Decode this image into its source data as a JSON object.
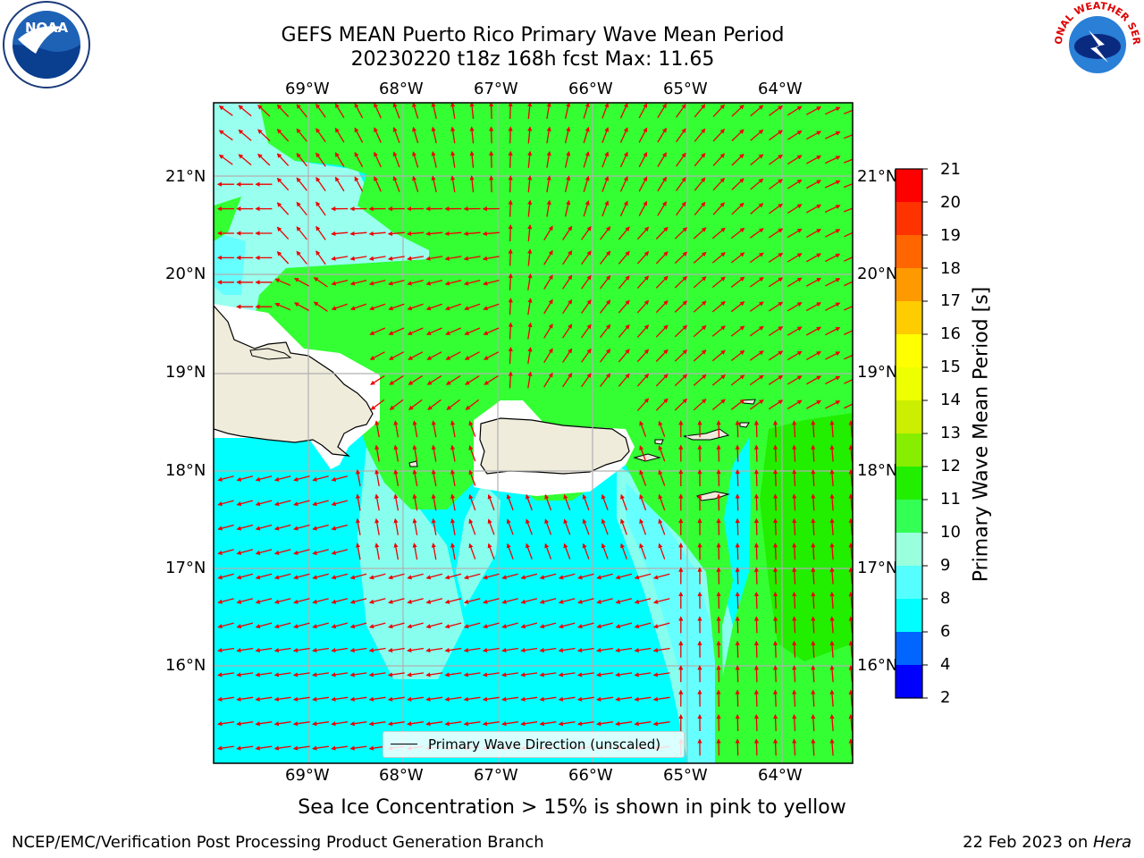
{
  "title": {
    "line1": "GEFS MEAN Puerto Rico Primary Wave Mean Period",
    "line2": "20230220 t18z 168h fcst   Max: 11.65"
  },
  "lon_labels": [
    "69°W",
    "68°W",
    "67°W",
    "66°W",
    "65°W",
    "64°W"
  ],
  "lat_labels": [
    "21°N",
    "20°N",
    "19°N",
    "18°N",
    "17°N",
    "16°N"
  ],
  "legend": {
    "label": "Primary Wave Direction (unscaled)"
  },
  "colorbar": {
    "title": "Primary Wave Mean Period [s]",
    "ticks": [
      "21",
      "20",
      "19",
      "18",
      "17",
      "16",
      "15",
      "14",
      "13",
      "12",
      "11",
      "10",
      "9",
      "8",
      "6",
      "4",
      "2"
    ],
    "levels": [
      2,
      4,
      6,
      8,
      9,
      10,
      11,
      12,
      13,
      14,
      15,
      16,
      17,
      18,
      19,
      20,
      21
    ],
    "colors": [
      "#0000ff",
      "#0066ff",
      "#00ffff",
      "#55ffff",
      "#99ffdd",
      "#33ff55",
      "#22ee00",
      "#88ee00",
      "#ccee00",
      "#eeff00",
      "#ffff00",
      "#ffcc00",
      "#ff9900",
      "#ff6600",
      "#ff3300",
      "#ff0000"
    ]
  },
  "colors": {
    "land": "#efecdc",
    "arrow": "#ee0000",
    "grid": "#b0b0b0",
    "ocean_short_period": "#00ffff",
    "ocean_mid_period": "#99ffee",
    "ocean_long_period": "#33ff33"
  },
  "caption": "Sea Ice Concentration > 15% is shown in pink to yellow",
  "footer": {
    "left": "NCEP/EMC/Verification Post Processing Product Generation Branch",
    "right_prefix": "22 Feb 2023 on ",
    "right_host": "Hera"
  },
  "logos": {
    "noaa": "NOAA",
    "nws": "NATIONAL WEATHER SERVICE"
  }
}
